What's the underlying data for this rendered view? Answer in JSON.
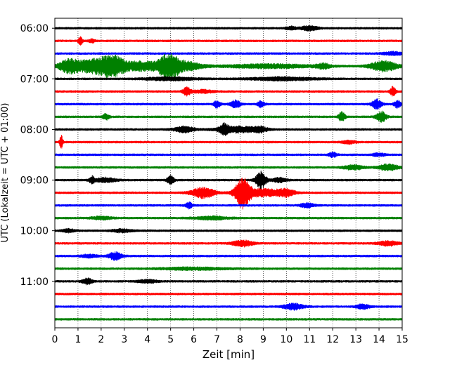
{
  "chart_data": {
    "type": "line",
    "title": "",
    "xlabel": "Zeit  [min]",
    "ylabel": "UTC (Lokalzeit = UTC + 01:00)",
    "xlim": [
      0,
      15
    ],
    "x_ticks": [
      0,
      1,
      2,
      3,
      4,
      5,
      6,
      7,
      8,
      9,
      10,
      11,
      12,
      13,
      14,
      15
    ],
    "y_ticks": [
      {
        "label": "06:00",
        "hour": 6.0
      },
      {
        "label": "07:00",
        "hour": 7.0
      },
      {
        "label": "08:00",
        "hour": 8.0
      },
      {
        "label": "09:00",
        "hour": 9.0
      },
      {
        "label": "10:00",
        "hour": 10.0
      },
      {
        "label": "11:00",
        "hour": 11.0
      }
    ],
    "grid": "vertical dotted",
    "colors": [
      "#000000",
      "#ff0000",
      "#0000ff",
      "#008000"
    ],
    "traces": [
      {
        "start": "06:00",
        "color": "#000000",
        "bursts": [
          [
            10.2,
            0.15,
            2.0
          ],
          [
            11.0,
            0.25,
            3.0
          ]
        ]
      },
      {
        "start": "06:15",
        "color": "#ff0000",
        "bursts": [
          [
            1.1,
            0.06,
            6.0
          ],
          [
            1.6,
            0.1,
            2.0
          ]
        ]
      },
      {
        "start": "06:30",
        "color": "#0000ff",
        "bursts": [
          [
            14.6,
            0.3,
            2.0
          ]
        ]
      },
      {
        "start": "06:45",
        "color": "#008000",
        "bursts": [
          [
            0.6,
            0.3,
            8.0
          ],
          [
            1.7,
            0.6,
            9.0
          ],
          [
            2.5,
            0.35,
            10.0
          ],
          [
            3.7,
            0.7,
            6.0
          ],
          [
            4.9,
            0.3,
            14.0
          ],
          [
            5.6,
            0.5,
            6.0
          ],
          [
            9.3,
            1.4,
            2.5
          ],
          [
            11.6,
            0.2,
            3.0
          ],
          [
            14.2,
            0.4,
            7.0
          ]
        ]
      },
      {
        "start": "07:00",
        "color": "#000000",
        "bursts": [
          [
            5.0,
            0.8,
            2.0
          ],
          [
            9.8,
            1.0,
            2.0
          ]
        ]
      },
      {
        "start": "07:15",
        "color": "#ff0000",
        "bursts": [
          [
            5.7,
            0.12,
            5.0
          ],
          [
            6.4,
            0.3,
            2.0
          ],
          [
            14.6,
            0.08,
            7.0
          ]
        ]
      },
      {
        "start": "07:30",
        "color": "#0000ff",
        "bursts": [
          [
            7.0,
            0.1,
            5.0
          ],
          [
            7.8,
            0.15,
            5.0
          ],
          [
            8.9,
            0.1,
            4.0
          ],
          [
            13.9,
            0.15,
            6.0
          ],
          [
            14.8,
            0.1,
            5.0
          ]
        ]
      },
      {
        "start": "07:45",
        "color": "#008000",
        "bursts": [
          [
            2.2,
            0.1,
            4.0
          ],
          [
            12.4,
            0.1,
            6.0
          ],
          [
            14.1,
            0.15,
            7.0
          ]
        ]
      },
      {
        "start": "08:00",
        "color": "#000000",
        "bursts": [
          [
            5.6,
            0.3,
            4.0
          ],
          [
            7.3,
            0.12,
            7.0
          ],
          [
            7.9,
            0.6,
            4.0
          ],
          [
            8.9,
            0.2,
            3.0
          ]
        ]
      },
      {
        "start": "08:15",
        "color": "#ff0000",
        "bursts": [
          [
            0.28,
            0.05,
            9.0
          ],
          [
            12.7,
            0.2,
            2.0
          ]
        ]
      },
      {
        "start": "08:30",
        "color": "#0000ff",
        "bursts": [
          [
            12.0,
            0.12,
            3.0
          ],
          [
            14.0,
            0.2,
            2.0
          ]
        ]
      },
      {
        "start": "08:45",
        "color": "#008000",
        "bursts": [
          [
            12.9,
            0.3,
            3.0
          ],
          [
            14.4,
            0.3,
            4.0
          ]
        ]
      },
      {
        "start": "09:00",
        "color": "#000000",
        "bursts": [
          [
            1.6,
            0.08,
            5.0
          ],
          [
            2.2,
            0.3,
            3.0
          ],
          [
            5.0,
            0.1,
            6.0
          ],
          [
            8.9,
            0.15,
            12.0
          ],
          [
            9.7,
            0.2,
            3.0
          ]
        ]
      },
      {
        "start": "09:15",
        "color": "#ff0000",
        "bursts": [
          [
            6.4,
            0.35,
            7.0
          ],
          [
            8.1,
            0.22,
            20.0
          ],
          [
            9.0,
            0.6,
            5.0
          ],
          [
            10.0,
            0.25,
            4.0
          ]
        ]
      },
      {
        "start": "09:30",
        "color": "#0000ff",
        "bursts": [
          [
            5.8,
            0.1,
            4.0
          ],
          [
            10.9,
            0.2,
            3.0
          ]
        ]
      },
      {
        "start": "09:45",
        "color": "#008000",
        "bursts": [
          [
            2.0,
            0.3,
            2.0
          ],
          [
            6.8,
            0.5,
            2.0
          ]
        ]
      },
      {
        "start": "10:00",
        "color": "#000000",
        "bursts": [
          [
            0.6,
            0.2,
            2.0
          ],
          [
            2.9,
            0.3,
            2.0
          ]
        ]
      },
      {
        "start": "10:15",
        "color": "#ff0000",
        "bursts": [
          [
            8.1,
            0.3,
            4.0
          ],
          [
            14.4,
            0.3,
            3.0
          ]
        ]
      },
      {
        "start": "10:30",
        "color": "#0000ff",
        "bursts": [
          [
            1.5,
            0.25,
            2.0
          ],
          [
            2.6,
            0.2,
            5.0
          ]
        ]
      },
      {
        "start": "10:45",
        "color": "#008000",
        "bursts": [
          [
            6.0,
            1.0,
            1.5
          ]
        ]
      },
      {
        "start": "11:00",
        "color": "#000000",
        "bursts": [
          [
            1.4,
            0.15,
            4.0
          ],
          [
            4.0,
            0.3,
            2.0
          ]
        ]
      },
      {
        "start": "11:15",
        "color": "#ff0000",
        "bursts": []
      },
      {
        "start": "11:30",
        "color": "#0000ff",
        "bursts": [
          [
            10.3,
            0.3,
            4.0
          ],
          [
            13.3,
            0.2,
            3.0
          ]
        ]
      },
      {
        "start": "11:45",
        "color": "#008000",
        "bursts": []
      }
    ]
  }
}
